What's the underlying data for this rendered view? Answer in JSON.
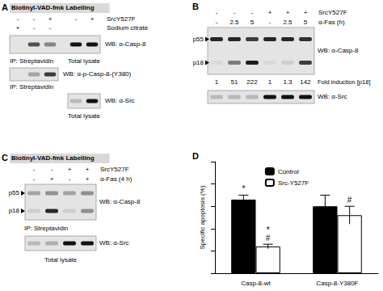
{
  "panels": {
    "A": {
      "label": "A",
      "title": "Biotinyl-VAD-fmk Labelling",
      "conditions": [
        {
          "name": "SrcY527F",
          "signs": [
            "-",
            "-",
            "+",
            "-",
            "+"
          ]
        },
        {
          "name": "Sodium citrate",
          "signs": [
            "+",
            "-",
            "-",
            null,
            null
          ]
        }
      ],
      "blots": [
        {
          "label": "WB: α-Casp-8",
          "rows": [
            {
              "values": [
                0,
                0.7,
                0.45,
                1,
                1
              ]
            }
          ]
        },
        {
          "label": "WB: α-p-Casp-8-(Y380)",
          "rows": [
            {
              "values": [
                0,
                0.3,
                0.8,
                null,
                null
              ]
            }
          ]
        },
        {
          "label": "WB: α-Src",
          "rows": [
            {
              "values": [
                null,
                null,
                null,
                0.2,
                1
              ]
            }
          ]
        }
      ],
      "captions": [
        "IP: Streptavidin",
        "Total lysate",
        "IP: Streptavidin",
        "Total lysate"
      ]
    },
    "B": {
      "label": "B",
      "conditions": [
        {
          "name": "SrcY527F",
          "signs": [
            "-",
            "-",
            "-",
            "+",
            "+",
            "+"
          ]
        },
        {
          "name": "α-Fas (h)",
          "signs": [
            "-",
            "2.5",
            "5",
            "-",
            "2.5",
            "5"
          ]
        }
      ],
      "blots": [
        {
          "label": "WB: α-Casp-8",
          "rows": [
            {
              "name": "p55",
              "values": [
                0.9,
                0.9,
                0.8,
                0.9,
                0.9,
                0.85
              ]
            },
            {
              "name": "p18",
              "values": [
                0.05,
                0.5,
                0.95,
                0.05,
                0.1,
                0.8
              ]
            }
          ]
        },
        {
          "label": "WB: α-Src",
          "rows": [
            {
              "values": [
                0.2,
                0.2,
                0.2,
                1,
                1,
                1
              ]
            }
          ]
        }
      ],
      "fold_induction": {
        "label": "Fold induction [p18]",
        "values": [
          1,
          51,
          222,
          1,
          1.3,
          142
        ]
      }
    },
    "C": {
      "label": "C",
      "title": "Biotinyl-VAD-fmk Labelling",
      "conditions": [
        {
          "name": "SrcY527F",
          "signs": [
            "-",
            "-",
            "+",
            "+"
          ]
        },
        {
          "name": "α-Fas (4 h)",
          "signs": [
            "-",
            "+",
            "-",
            "+"
          ]
        }
      ],
      "blots": [
        {
          "label": "WB: α-Casp-8",
          "rows": [
            {
              "name": "p55",
              "values": [
                0.3,
                0.4,
                0.3,
                0.4
              ]
            },
            {
              "name": "p18",
              "values": [
                0.1,
                0.9,
                0.1,
                0.4
              ]
            }
          ]
        },
        {
          "label": "WB: α-Src",
          "rows": [
            {
              "values": [
                0.2,
                0.25,
                1,
                1
              ]
            }
          ]
        }
      ],
      "captions": [
        "IP: Streptavidin",
        "Total lysate"
      ]
    },
    "D": {
      "label": "D"
    }
  },
  "chart_data": {
    "type": "bar",
    "y_label": "Specific apoptosis (%)",
    "categories": [
      "Casp-8-wt",
      "Casp-8-Y380F"
    ],
    "series": [
      {
        "name": "Control",
        "color": "#000000",
        "values": [
          33,
          30
        ],
        "errors": [
          2,
          5
        ]
      },
      {
        "name": "Src-Y527F",
        "color": "#ffffff",
        "values": [
          12,
          26
        ],
        "errors": [
          1,
          4
        ]
      }
    ],
    "ylim": [
      0,
      50
    ],
    "yticks": [
      0,
      10,
      20,
      30,
      40,
      50
    ],
    "tick_labels": "x",
    "grid": false,
    "legend": "top",
    "annotations": [
      {
        "text": "*",
        "category": "Casp-8-wt",
        "series": "Control"
      },
      {
        "text": "#",
        "category": "Casp-8-wt",
        "series": "Src-Y527F"
      },
      {
        "text": "*",
        "category": "Casp-8-wt",
        "series": "Src-Y527F"
      },
      {
        "text": "#",
        "category": "Casp-8-Y380F",
        "series": "Src-Y527F"
      }
    ]
  }
}
